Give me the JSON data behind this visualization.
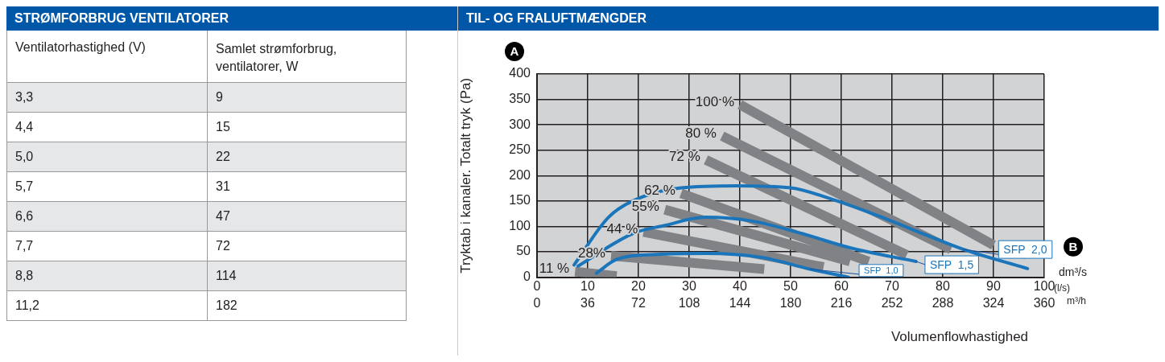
{
  "chart_data": [
    {
      "type": "other",
      "title": "STRØMFORBRUG VENTILATORER",
      "xlabel": "Ventilatorhastighed (V)",
      "ylabel": "Samlet strømforbrug, ventilatorer, W",
      "categories": [
        "3,3",
        "4,4",
        "5,0",
        "5,7",
        "6,6",
        "7,7",
        "8,8",
        "11,2"
      ],
      "values": [
        9,
        15,
        22,
        31,
        47,
        72,
        114,
        182
      ],
      "data_labels": true
    },
    {
      "type": "line",
      "title": "TIL- OG FRALUFTMÆNGDER",
      "xlabel": "Volumenflowhastighed",
      "ylabel": "Tryktab i kanaler. Totalt tryk (Pa)",
      "x2label": "m³/h",
      "xlim": [
        0,
        100
      ],
      "xticks": [
        0,
        10,
        20,
        30,
        40,
        50,
        60,
        70,
        80,
        90,
        100
      ],
      "x2lim": [
        0,
        360
      ],
      "x2ticks": [
        0,
        36,
        72,
        108,
        144,
        180,
        216,
        252,
        288,
        324,
        360
      ],
      "ylim": [
        0,
        400
      ],
      "yticks": [
        0,
        50,
        100,
        150,
        200,
        250,
        300,
        350,
        400
      ],
      "grid": true,
      "legend": false,
      "marker": "none",
      "line_style": "solid",
      "annotations": [
        "A",
        "B",
        "dm³/s",
        "(l/s)"
      ],
      "series": [
        {
          "name": "100 %",
          "color": "#808285",
          "x": [
            40,
            90
          ],
          "values": [
            340,
            63
          ]
        },
        {
          "name": "80 %",
          "color": "#808285",
          "x": [
            36.5,
            81.6
          ],
          "values": [
            278,
            55
          ]
        },
        {
          "name": "72 %",
          "color": "#808285",
          "x": [
            33.3,
            72.9
          ],
          "values": [
            231,
            44
          ]
        },
        {
          "name": "62 %",
          "color": "#808285",
          "x": [
            28.4,
            65.4
          ],
          "values": [
            165,
            31
          ]
        },
        {
          "name": "55%",
          "color": "#808285",
          "x": [
            25.2,
            61.7
          ],
          "values": [
            133,
            31
          ]
        },
        {
          "name": "44 %",
          "color": "#808285",
          "x": [
            21,
            56.5
          ],
          "values": [
            89,
            20
          ]
        },
        {
          "name": "28%",
          "color": "#808285",
          "x": [
            14.6,
            44.8
          ],
          "values": [
            42,
            16
          ]
        },
        {
          "name": "11 %",
          "color": "#808285",
          "x": [
            7.5,
            15.7
          ],
          "values": [
            11,
            2
          ]
        },
        {
          "name": "SFP  2,0",
          "color": "#1b75bb",
          "x": [
            7.3,
            14.1,
            20.5,
            28.4,
            39.5,
            50,
            58.6,
            68,
            76,
            84,
            96.7
          ],
          "values": [
            24,
            118,
            157,
            176,
            180,
            176,
            152,
            118,
            86,
            55,
            17
          ]
        },
        {
          "name": "SFP  1,5",
          "color": "#1b75bb",
          "x": [
            8.1,
            18.9,
            25.2,
            33.2,
            42.7,
            52.2,
            61.7,
            74.7
          ],
          "values": [
            22,
            86,
            102,
            118,
            110,
            86,
            58,
            31
          ]
        },
        {
          "name": "SFP  1,0",
          "color": "#1b75bb",
          "x": [
            11.7,
            15.7,
            23.6,
            33.2,
            44.3,
            53.8,
            61.4
          ],
          "values": [
            8,
            35,
            45,
            47,
            39,
            16,
            0
          ]
        }
      ]
    }
  ]
}
